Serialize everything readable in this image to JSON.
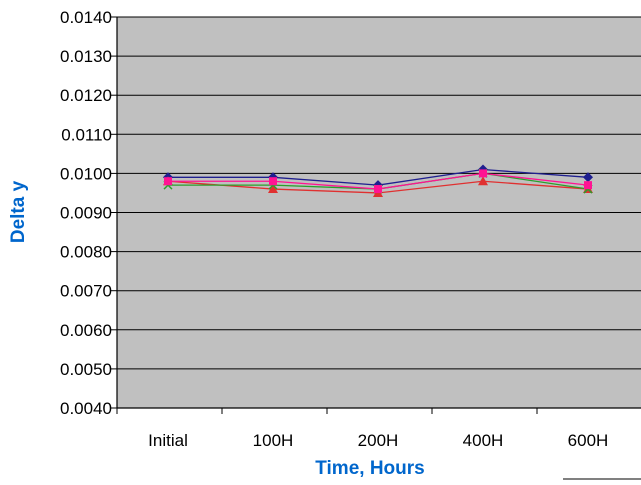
{
  "chart_data": {
    "type": "line",
    "title": "",
    "xlabel": "Time, Hours",
    "ylabel": "Delta y",
    "categories": [
      "Initial",
      "100H",
      "200H",
      "400H",
      "600H"
    ],
    "y_tick_labels": [
      "0.0040",
      "0.0050",
      "0.0060",
      "0.0070",
      "0.0080",
      "0.0090",
      "0.0100",
      "0.0110",
      "0.0120",
      "0.0130",
      "0.0140"
    ],
    "ylim": [
      0.004,
      0.014
    ],
    "grid": true,
    "legend": "none",
    "plot_background": "#c0c0c0",
    "series": [
      {
        "color": "#1f1f8f",
        "marker": "diamond",
        "values": [
          0.0099,
          0.0099,
          0.0097,
          0.0101,
          0.0099
        ]
      },
      {
        "color": "#e03030",
        "marker": "triangle",
        "values": [
          0.0098,
          0.0096,
          0.0095,
          0.0098,
          0.0096
        ]
      },
      {
        "color": "#2aa02a",
        "marker": "x",
        "values": [
          0.0097,
          0.0097,
          0.0096,
          0.01,
          0.0096
        ]
      },
      {
        "color": "#ff1493",
        "marker": "square",
        "values": [
          0.0098,
          0.0098,
          0.0096,
          0.01,
          0.0097
        ]
      }
    ]
  }
}
